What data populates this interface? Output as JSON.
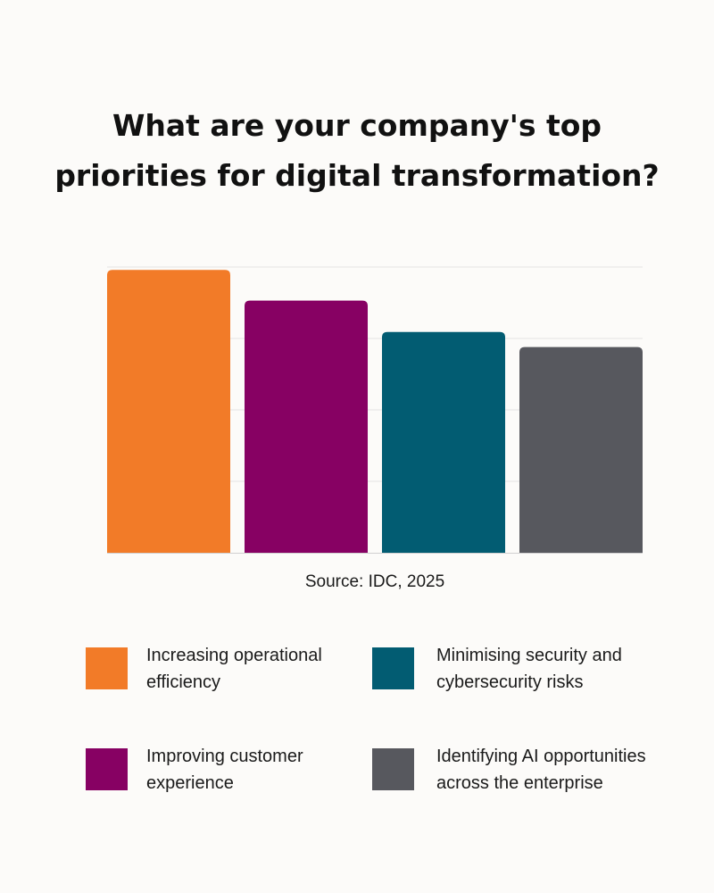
{
  "colors": {
    "background": "#fcfbf9",
    "grid": "#e3e3e3",
    "axis": "#d0d0d0"
  },
  "chart_data": {
    "type": "bar",
    "title_lines": [
      "What are your company's top",
      "priorities for digital transformation?"
    ],
    "categories": [
      "Increasing operational efficiency",
      "Improving customer experience",
      "Minimising security and cybersecurity risks",
      "Identifying AI opportunities across the enterprise"
    ],
    "values": [
      3.96,
      3.53,
      3.09,
      2.88
    ],
    "colors": [
      "#f27b28",
      "#870163",
      "#025c72",
      "#57585e"
    ],
    "ylim": [
      0,
      4
    ],
    "grid": true,
    "y_tick_labels_shown": false,
    "legend_position": "bottom",
    "source": "Source: IDC, 2025"
  },
  "legend": [
    {
      "line1": "Increasing operational",
      "line2": "efficiency",
      "color": "#f27b28"
    },
    {
      "line1": "Minimising security and",
      "line2": "cybersecurity risks",
      "color": "#025c72"
    },
    {
      "line1": "Improving customer",
      "line2": "experience",
      "color": "#870163"
    },
    {
      "line1": "Identifying AI opportunities",
      "line2": "across the enterprise",
      "color": "#57585e"
    }
  ]
}
